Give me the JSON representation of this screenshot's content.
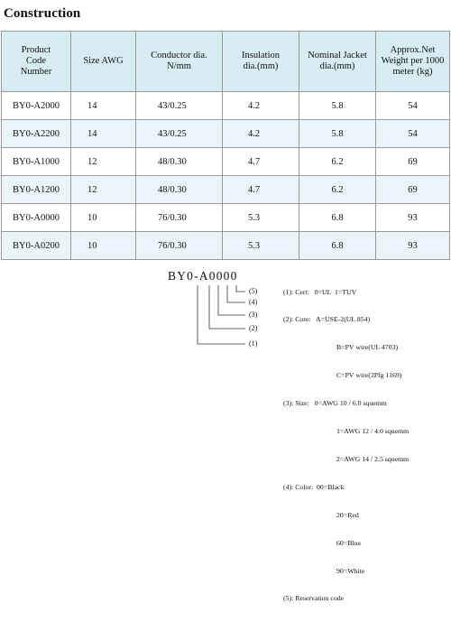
{
  "title": "Construction",
  "table": {
    "headers": [
      [
        "Product",
        "Code",
        "Number"
      ],
      [
        "Size AWG"
      ],
      [
        "Conductor dia.",
        "N/mm"
      ],
      [
        "Insulation",
        "dia.(mm)"
      ],
      [
        "Nominal Jacket",
        "dia.(mm)"
      ],
      [
        "Approx.Net",
        "Weight per 1000",
        "meter (kg)"
      ]
    ],
    "rows": [
      [
        "BY0-A2000",
        "14",
        "43/0.25",
        "4.2",
        "5.8",
        "54"
      ],
      [
        "BY0-A2200",
        "14",
        "43/0.25",
        "4.2",
        "5.8",
        "54"
      ],
      [
        "BY0-A1000",
        "12",
        "48/0.30",
        "4.7",
        "6.2",
        "69"
      ],
      [
        "BY0-A1200",
        "12",
        "48/0.30",
        "4.7",
        "6.2",
        "69"
      ],
      [
        "BY0-A0000",
        "10",
        "76/0.30",
        "5.3",
        "6.8",
        "93"
      ],
      [
        "BY0-A0200",
        "10",
        "76/0.30",
        "5.3",
        "6.8",
        "93"
      ]
    ]
  },
  "code_diagram": {
    "code": "BY0-A0000",
    "callouts": [
      "(5)",
      "(4)",
      "(3)",
      "(2)",
      "(1)"
    ],
    "legend": [
      "(1): Cert:   0=UL  1=TUV",
      "(2): Core:   A=USE-2(UL 854)",
      "B=PV wire(UL 4703)",
      "C=PV wire(2Pfg 1169)",
      "(3): Size:   0=AWG 10 / 6.0 squemm",
      "1=AWG 12 / 4.0 squemm",
      "2=AWG 14 / 2.5 squemm",
      "(4): Color:  00=Black",
      "20=Red",
      "60=Blue",
      "90=White",
      "(5): Reservation code"
    ]
  },
  "colors": {
    "header_bg": "#d8ecf3",
    "alt_row_bg": "#ebf5f9",
    "border": "#9a9a9a"
  }
}
